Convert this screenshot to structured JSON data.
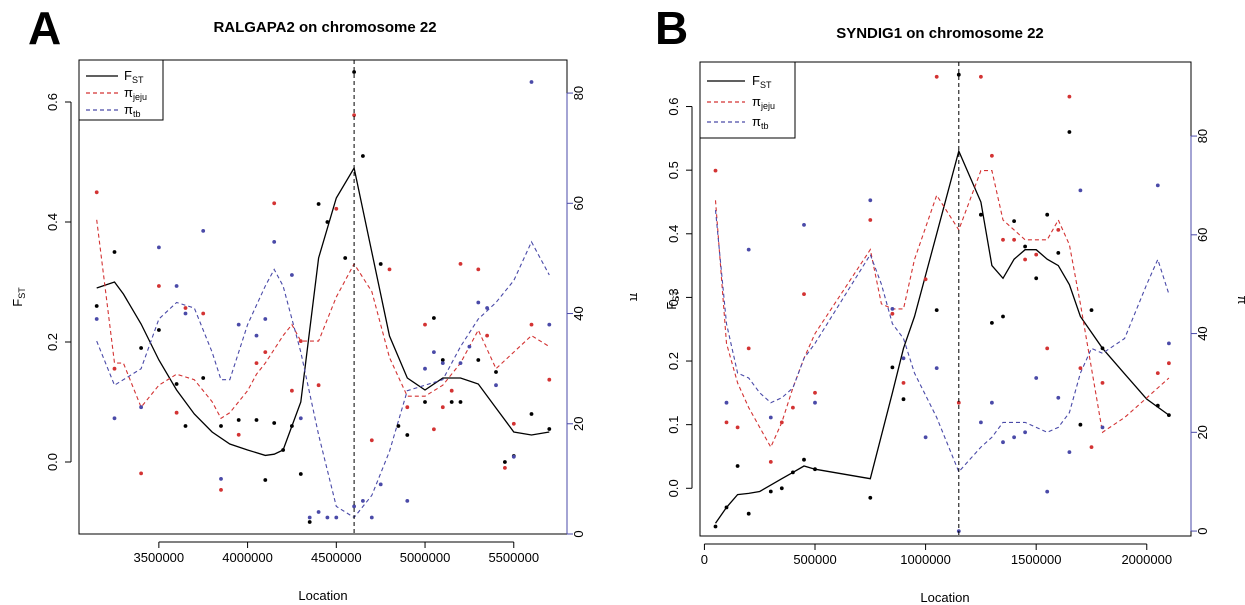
{
  "figure": {
    "panels": [
      {
        "letter": "A",
        "title": "RALGAPA2 on chromosome 22",
        "xlabel": "Location",
        "ylabel_left": "F",
        "ylabel_left_sub": "ST",
        "ylabel_right": "π",
        "legend": [
          {
            "label": "F",
            "sub": "ST",
            "color": "#000000",
            "dash": false
          },
          {
            "label": "π",
            "sub": "jeju",
            "color": "#d33333",
            "dash": true
          },
          {
            "label": "π",
            "sub": "tb",
            "color": "#4a4aa8",
            "dash": true
          }
        ]
      },
      {
        "letter": "B",
        "title": "SYNDIG1 on chromosome 22",
        "xlabel": "Location",
        "ylabel_left": "F",
        "ylabel_left_sub": "ST",
        "ylabel_right": "π",
        "legend": [
          {
            "label": "F",
            "sub": "ST",
            "color": "#000000",
            "dash": false
          },
          {
            "label": "π",
            "sub": "jeju",
            "color": "#d33333",
            "dash": true
          },
          {
            "label": "π",
            "sub": "tb",
            "color": "#4a4aa8",
            "dash": true
          }
        ]
      }
    ]
  },
  "colors": {
    "fst": "#000000",
    "jeju": "#d33333",
    "tb": "#4a4aa8",
    "right_axis": "#4a4aa8"
  },
  "chart_data": [
    {
      "type": "line",
      "title": "RALGAPA2 on chromosome 22",
      "xlabel": "Location",
      "ylabel": "FST",
      "ylabel_right": "π",
      "xlim": [
        3050000,
        5800000
      ],
      "ylim": [
        -0.12,
        0.67
      ],
      "ylim_right": [
        0,
        86
      ],
      "x_ticks": [
        3500000,
        4000000,
        4500000,
        5000000,
        5500000
      ],
      "x_tick_labels": [
        "3500000",
        "4000000",
        "4500000",
        "5000000",
        "5500000"
      ],
      "y_ticks": [
        0.0,
        0.2,
        0.4,
        0.6
      ],
      "y_tick_labels": [
        "0.0",
        "0.2",
        "0.4",
        "0.6"
      ],
      "y_ticks_right": [
        0,
        20,
        40,
        60,
        80
      ],
      "y_tick_labels_right": [
        "0",
        "20",
        "40",
        "60",
        "80"
      ],
      "vline_x": 4600000,
      "legend_position": "top-left",
      "grid": false,
      "series": [
        {
          "name": "FST",
          "axis": "left",
          "style": "solid",
          "color": "#000000",
          "x": [
            3150000,
            3250000,
            3300000,
            3400000,
            3500000,
            3600000,
            3700000,
            3800000,
            3900000,
            4000000,
            4100000,
            4150000,
            4200000,
            4300000,
            4400000,
            4500000,
            4600000,
            4700000,
            4800000,
            4900000,
            5000000,
            5100000,
            5200000,
            5300000,
            5400000,
            5500000,
            5600000,
            5700000
          ],
          "y": [
            0.29,
            0.3,
            0.28,
            0.23,
            0.17,
            0.12,
            0.08,
            0.05,
            0.03,
            0.02,
            0.011,
            0.013,
            0.02,
            0.1,
            0.34,
            0.44,
            0.49,
            0.35,
            0.21,
            0.14,
            0.12,
            0.14,
            0.14,
            0.13,
            0.09,
            0.05,
            0.045,
            0.05
          ]
        },
        {
          "name": "π jeju",
          "axis": "right",
          "style": "dashed",
          "color": "#d33333",
          "x": [
            3150000,
            3250000,
            3300000,
            3400000,
            3500000,
            3600000,
            3700000,
            3800000,
            3850000,
            3900000,
            4000000,
            4050000,
            4100000,
            4200000,
            4250000,
            4300000,
            4400000,
            4500000,
            4600000,
            4700000,
            4800000,
            4900000,
            5000000,
            5100000,
            5200000,
            5300000,
            5400000,
            5500000,
            5600000,
            5700000
          ],
          "y": [
            57,
            31,
            31,
            23,
            27,
            29,
            28,
            24,
            21,
            22,
            26,
            29,
            31,
            36,
            38,
            35,
            35,
            43,
            49,
            44,
            32,
            25,
            25,
            27,
            31,
            37,
            30,
            33,
            36,
            34
          ]
        },
        {
          "name": "π tb",
          "axis": "right",
          "style": "dashed",
          "color": "#4a4aa8",
          "x": [
            3150000,
            3250000,
            3300000,
            3400000,
            3500000,
            3600000,
            3700000,
            3800000,
            3850000,
            3900000,
            4000000,
            4100000,
            4150000,
            4200000,
            4300000,
            4400000,
            4500000,
            4600000,
            4700000,
            4800000,
            4900000,
            5000000,
            5100000,
            5200000,
            5300000,
            5400000,
            5500000,
            5600000,
            5700000
          ],
          "y": [
            35,
            27,
            28,
            30,
            39,
            42,
            41,
            33,
            28,
            28,
            38,
            45,
            48,
            45,
            33,
            18,
            5,
            3,
            7,
            15,
            26,
            27,
            28,
            34,
            39,
            42,
            46,
            53,
            47
          ]
        },
        {
          "name": "FST points",
          "axis": "left",
          "style": "points",
          "color": "#000000",
          "x": [
            3150000,
            3250000,
            3400000,
            3500000,
            3600000,
            3650000,
            3750000,
            3850000,
            3950000,
            4050000,
            4100000,
            4150000,
            4200000,
            4250000,
            4300000,
            4350000,
            4400000,
            4450000,
            4550000,
            4600000,
            4650000,
            4750000,
            4850000,
            4900000,
            5000000,
            5050000,
            5100000,
            5150000,
            5200000,
            5300000,
            5400000,
            5450000,
            5500000,
            5600000,
            5700000
          ],
          "y": [
            0.26,
            0.35,
            0.19,
            0.22,
            0.13,
            0.06,
            0.14,
            0.06,
            0.07,
            0.07,
            -0.03,
            0.065,
            0.02,
            0.06,
            -0.02,
            -0.1,
            0.43,
            0.4,
            0.34,
            0.65,
            0.51,
            0.33,
            0.06,
            0.045,
            0.1,
            0.24,
            0.17,
            0.1,
            0.1,
            0.17,
            0.15,
            0.0,
            0.01,
            0.08,
            0.055
          ]
        },
        {
          "name": "π jeju points",
          "axis": "right",
          "style": "points",
          "color": "#d33333",
          "x": [
            3150000,
            3250000,
            3400000,
            3500000,
            3600000,
            3650000,
            3750000,
            3850000,
            3950000,
            4050000,
            4100000,
            4150000,
            4250000,
            4300000,
            4400000,
            4500000,
            4600000,
            4700000,
            4800000,
            4900000,
            5000000,
            5050000,
            5100000,
            5150000,
            5200000,
            5300000,
            5350000,
            5450000,
            5500000,
            5600000,
            5700000
          ],
          "y": [
            62,
            30,
            11,
            45,
            22,
            41,
            40,
            8,
            18,
            31,
            33,
            60,
            26,
            35,
            27,
            59,
            76,
            17,
            48,
            23,
            38,
            19,
            23,
            26,
            49,
            48,
            36,
            12,
            20,
            38,
            28
          ]
        },
        {
          "name": "π tb points",
          "axis": "right",
          "style": "points",
          "color": "#4a4aa8",
          "x": [
            3150000,
            3250000,
            3400000,
            3500000,
            3600000,
            3650000,
            3750000,
            3850000,
            3950000,
            4050000,
            4100000,
            4150000,
            4250000,
            4300000,
            4350000,
            4400000,
            4450000,
            4500000,
            4600000,
            4650000,
            4700000,
            4750000,
            4900000,
            5000000,
            5050000,
            5100000,
            5200000,
            5250000,
            5300000,
            5350000,
            5400000,
            5500000,
            5600000,
            5700000
          ],
          "y": [
            39,
            21,
            23,
            52,
            45,
            40,
            55,
            10,
            38,
            36,
            39,
            53,
            47,
            21,
            3,
            4,
            3,
            3,
            5,
            6,
            3,
            9,
            6,
            30,
            33,
            31,
            31,
            34,
            42,
            41,
            27,
            14,
            82,
            38
          ]
        }
      ]
    },
    {
      "type": "line",
      "title": "SYNDIG1 on chromosome 22",
      "xlabel": "Location",
      "ylabel": "FST",
      "ylabel_right": "π",
      "xlim": [
        -20000,
        2200000
      ],
      "ylim": [
        -0.075,
        0.67
      ],
      "ylim_right": [
        -1,
        95
      ],
      "x_ticks": [
        0,
        500000,
        1000000,
        1500000,
        2000000
      ],
      "x_tick_labels": [
        "0",
        "500000",
        "1000000",
        "1500000",
        "2000000"
      ],
      "y_ticks": [
        0.0,
        0.1,
        0.2,
        0.3,
        0.4,
        0.5,
        0.6
      ],
      "y_tick_labels": [
        "0.0",
        "0.1",
        "0.2",
        "0.3",
        "0.4",
        "0.5",
        "0.6"
      ],
      "y_ticks_right": [
        0,
        20,
        40,
        60,
        80
      ],
      "y_tick_labels_right": [
        "0",
        "20",
        "40",
        "60",
        "80"
      ],
      "vline_x": 1150000,
      "legend_position": "top-left",
      "grid": false,
      "series": [
        {
          "name": "FST",
          "axis": "left",
          "style": "solid",
          "color": "#000000",
          "x": [
            50000,
            100000,
            150000,
            200000,
            250000,
            300000,
            350000,
            400000,
            450000,
            500000,
            750000,
            850000,
            900000,
            950000,
            1050000,
            1150000,
            1250000,
            1300000,
            1350000,
            1400000,
            1450000,
            1500000,
            1550000,
            1600000,
            1650000,
            1700000,
            1800000,
            1900000,
            2000000,
            2100000
          ],
          "y": [
            -0.055,
            -0.03,
            -0.01,
            -0.008,
            -0.005,
            0.005,
            0.015,
            0.025,
            0.035,
            0.03,
            0.015,
            0.15,
            0.22,
            0.27,
            0.4,
            0.53,
            0.45,
            0.35,
            0.33,
            0.36,
            0.375,
            0.375,
            0.36,
            0.35,
            0.32,
            0.27,
            0.22,
            0.18,
            0.14,
            0.115
          ]
        },
        {
          "name": "π jeju",
          "axis": "right",
          "style": "dashed",
          "color": "#d33333",
          "x": [
            50000,
            100000,
            150000,
            200000,
            250000,
            300000,
            350000,
            400000,
            450000,
            500000,
            750000,
            800000,
            850000,
            900000,
            950000,
            1050000,
            1150000,
            1250000,
            1300000,
            1350000,
            1450000,
            1550000,
            1600000,
            1650000,
            1700000,
            1800000,
            1900000,
            2000000,
            2100000
          ],
          "y": [
            67,
            38,
            30,
            25,
            21,
            17,
            22,
            29,
            35,
            40,
            57,
            46,
            45,
            45,
            55,
            68,
            61,
            73,
            73,
            63,
            59,
            59,
            63,
            58,
            46,
            20,
            23,
            27,
            31
          ]
        },
        {
          "name": "π tb",
          "axis": "right",
          "style": "dashed",
          "color": "#4a4aa8",
          "x": [
            50000,
            100000,
            150000,
            200000,
            250000,
            300000,
            350000,
            400000,
            450000,
            500000,
            750000,
            800000,
            850000,
            900000,
            950000,
            1050000,
            1150000,
            1250000,
            1300000,
            1350000,
            1450000,
            1550000,
            1600000,
            1650000,
            1700000,
            1750000,
            1800000,
            1900000,
            2000000,
            2050000,
            2100000
          ],
          "y": [
            65,
            42,
            32,
            31,
            28,
            26,
            27,
            29,
            35,
            38,
            56,
            50,
            42,
            39,
            32,
            23,
            12,
            17,
            19,
            22,
            22,
            20,
            21,
            24,
            32,
            37,
            36,
            39,
            50,
            55,
            48
          ]
        },
        {
          "name": "FST points",
          "axis": "left",
          "style": "points",
          "color": "#000000",
          "x": [
            50000,
            100000,
            150000,
            200000,
            300000,
            350000,
            400000,
            450000,
            500000,
            750000,
            850000,
            900000,
            1050000,
            1150000,
            1250000,
            1300000,
            1350000,
            1400000,
            1450000,
            1500000,
            1550000,
            1600000,
            1650000,
            1700000,
            1750000,
            1800000,
            2050000,
            2100000
          ],
          "y": [
            -0.06,
            -0.03,
            0.035,
            -0.04,
            -0.005,
            0.0,
            0.025,
            0.045,
            0.03,
            -0.015,
            0.19,
            0.14,
            0.28,
            0.65,
            0.43,
            0.26,
            0.27,
            0.42,
            0.38,
            0.33,
            0.43,
            0.37,
            0.56,
            0.1,
            0.28,
            0.22,
            0.13,
            0.115
          ]
        },
        {
          "name": "π jeju points",
          "axis": "right",
          "style": "points",
          "color": "#d33333",
          "x": [
            50000,
            100000,
            150000,
            200000,
            300000,
            350000,
            400000,
            450000,
            500000,
            750000,
            850000,
            900000,
            1000000,
            1050000,
            1150000,
            1250000,
            1300000,
            1350000,
            1400000,
            1450000,
            1500000,
            1550000,
            1600000,
            1650000,
            1700000,
            1750000,
            1800000,
            2050000,
            2100000
          ],
          "y": [
            73,
            22,
            21,
            37,
            14,
            22,
            25,
            48,
            28,
            63,
            44,
            30,
            51,
            92,
            26,
            92,
            76,
            59,
            59,
            55,
            56,
            37,
            61,
            88,
            33,
            17,
            30,
            32,
            34
          ]
        },
        {
          "name": "π tb points",
          "axis": "right",
          "style": "points",
          "color": "#4a4aa8",
          "x": [
            50000,
            100000,
            200000,
            300000,
            450000,
            500000,
            750000,
            850000,
            900000,
            1000000,
            1050000,
            1150000,
            1250000,
            1300000,
            1350000,
            1400000,
            1450000,
            1500000,
            1550000,
            1600000,
            1650000,
            1700000,
            1800000,
            2050000,
            2100000
          ],
          "y": [
            81,
            26,
            57,
            23,
            62,
            26,
            67,
            45,
            35,
            19,
            33,
            0,
            22,
            26,
            18,
            19,
            20,
            31,
            8,
            27,
            16,
            69,
            21,
            70,
            38
          ]
        }
      ]
    }
  ]
}
